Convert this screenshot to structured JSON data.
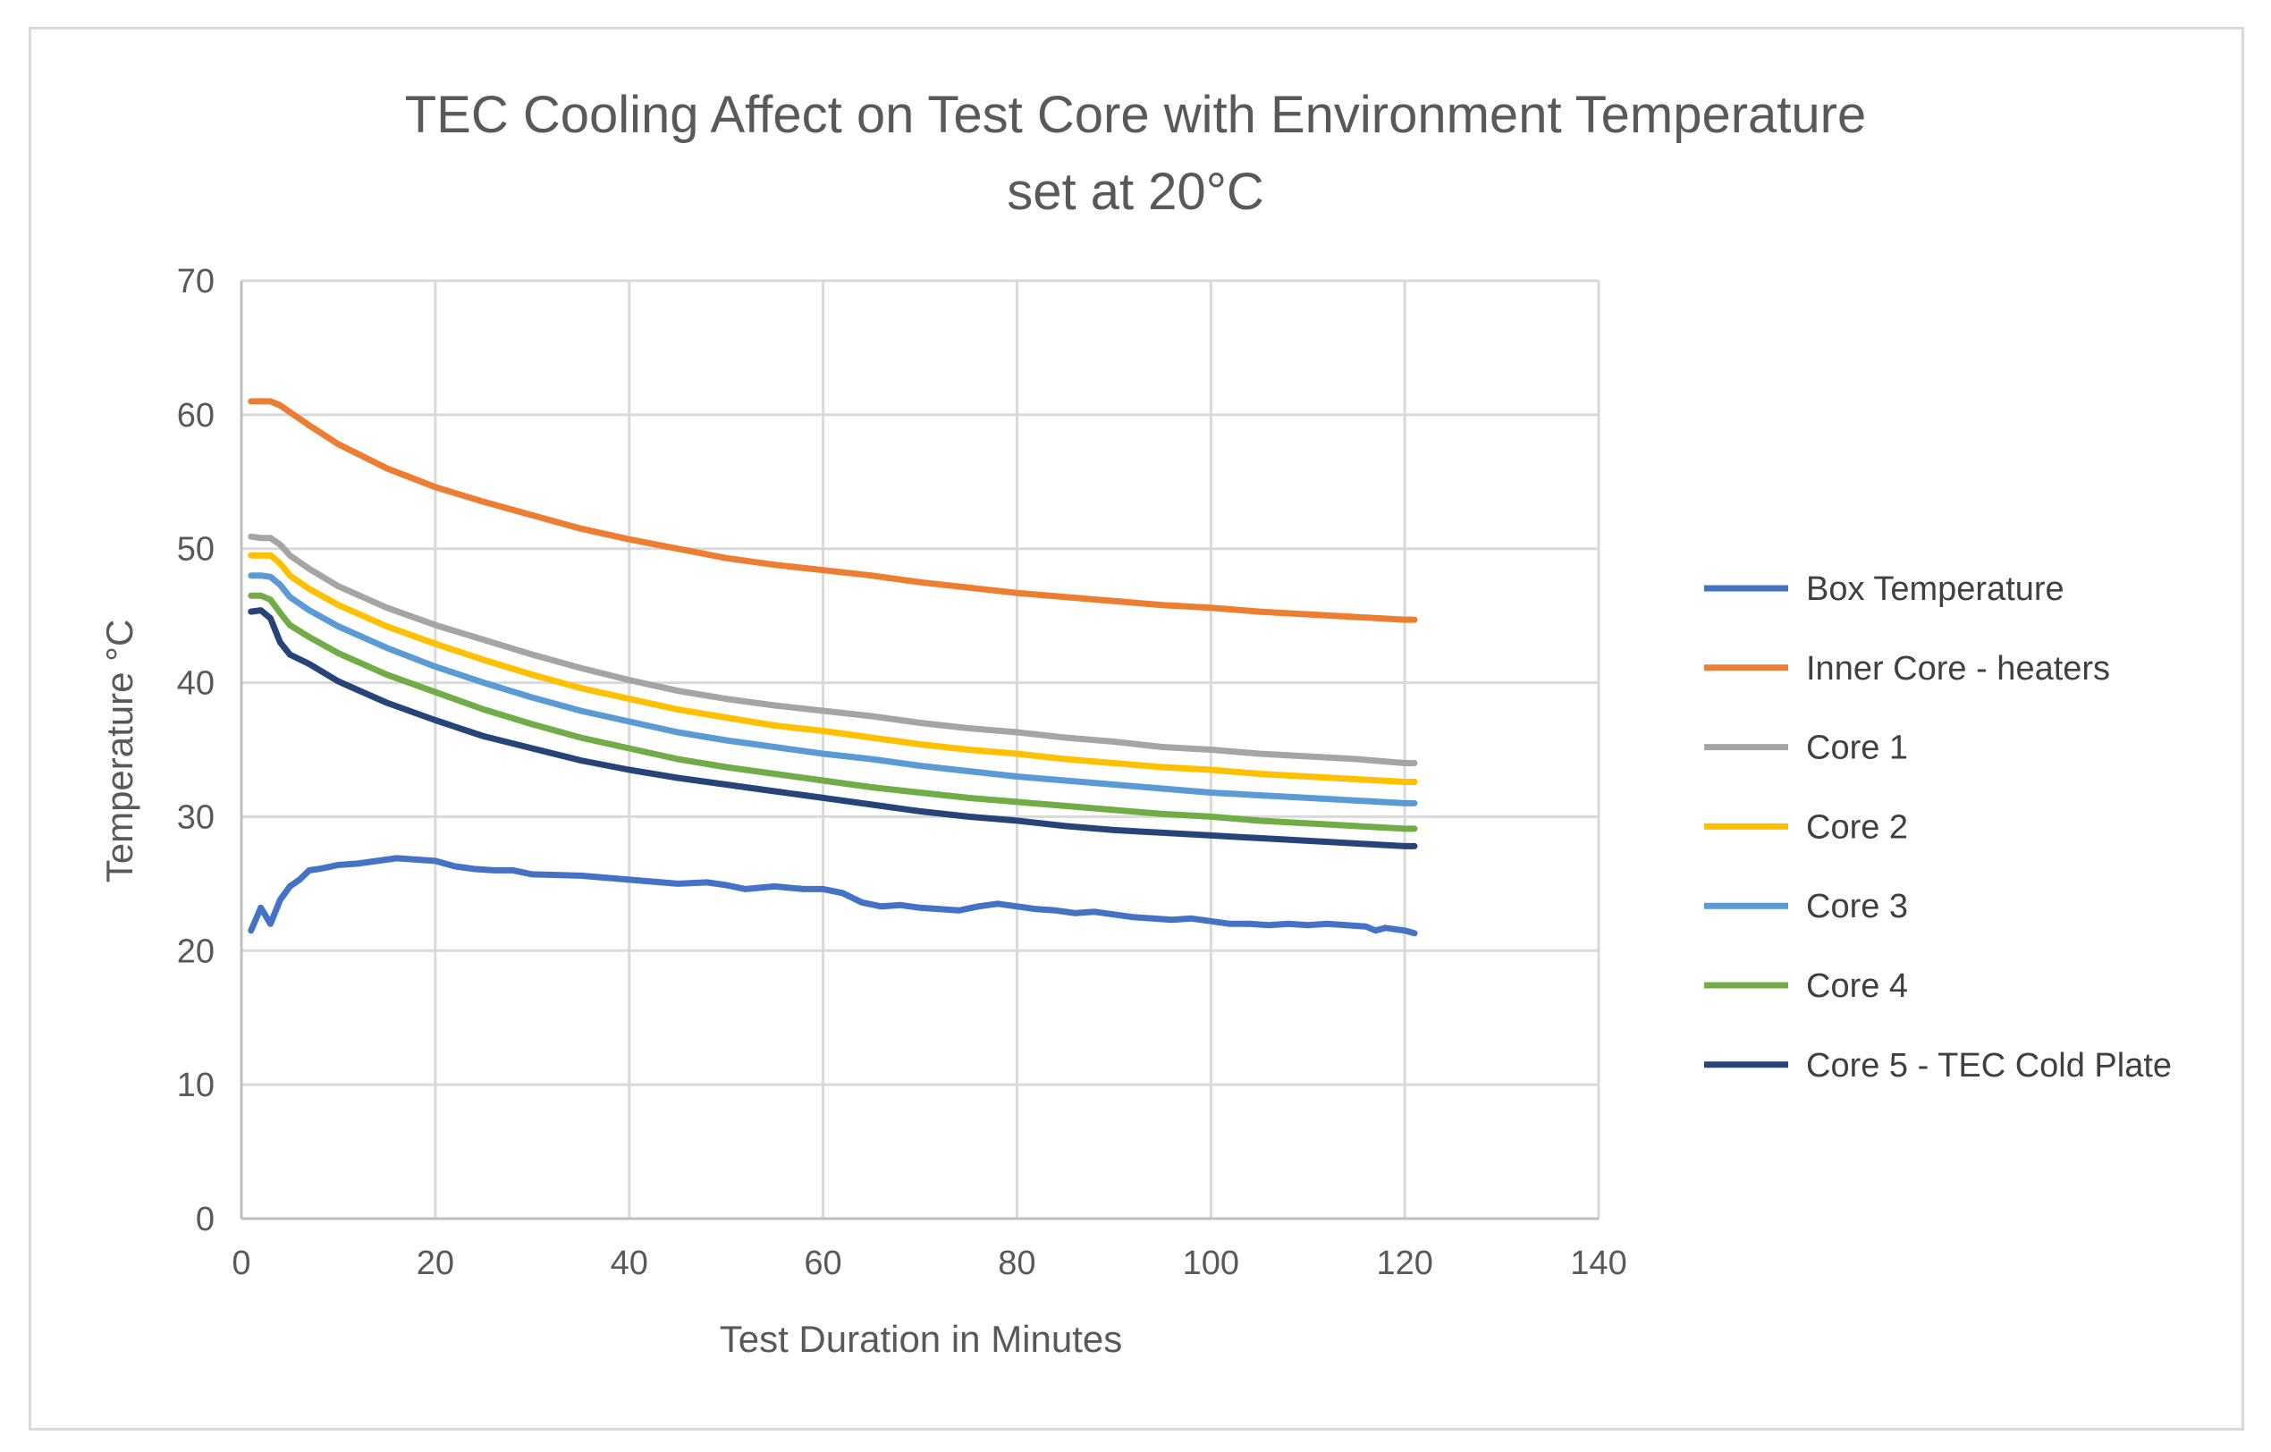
{
  "chart_data": {
    "type": "line",
    "title_lines": [
      "TEC Cooling Affect on Test Core with Environment Temperature",
      "set at 20°C"
    ],
    "xlabel": "Test Duration in Minutes",
    "ylabel": "Temperature °C",
    "xlim": [
      0,
      140
    ],
    "ylim": [
      0,
      70
    ],
    "xticks": [
      0,
      20,
      40,
      60,
      80,
      100,
      120,
      140
    ],
    "yticks": [
      0,
      10,
      20,
      30,
      40,
      50,
      60,
      70
    ],
    "grid": true,
    "legend_position": "right",
    "series": [
      {
        "name": "Box Temperature",
        "color": "#4472c4",
        "points": [
          [
            1,
            21.5
          ],
          [
            2,
            23.2
          ],
          [
            3,
            22.0
          ],
          [
            4,
            23.8
          ],
          [
            5,
            24.8
          ],
          [
            6,
            25.3
          ],
          [
            7,
            26.0
          ],
          [
            8,
            26.1
          ],
          [
            10,
            26.4
          ],
          [
            12,
            26.5
          ],
          [
            14,
            26.7
          ],
          [
            16,
            26.9
          ],
          [
            18,
            26.8
          ],
          [
            20,
            26.7
          ],
          [
            22,
            26.3
          ],
          [
            24,
            26.1
          ],
          [
            26,
            26.0
          ],
          [
            28,
            26.0
          ],
          [
            30,
            25.7
          ],
          [
            35,
            25.6
          ],
          [
            40,
            25.3
          ],
          [
            45,
            25.0
          ],
          [
            48,
            25.1
          ],
          [
            50,
            24.9
          ],
          [
            52,
            24.6
          ],
          [
            55,
            24.8
          ],
          [
            58,
            24.6
          ],
          [
            60,
            24.6
          ],
          [
            62,
            24.3
          ],
          [
            64,
            23.6
          ],
          [
            66,
            23.3
          ],
          [
            68,
            23.4
          ],
          [
            70,
            23.2
          ],
          [
            72,
            23.1
          ],
          [
            74,
            23.0
          ],
          [
            76,
            23.3
          ],
          [
            78,
            23.5
          ],
          [
            80,
            23.3
          ],
          [
            82,
            23.1
          ],
          [
            84,
            23.0
          ],
          [
            86,
            22.8
          ],
          [
            88,
            22.9
          ],
          [
            90,
            22.7
          ],
          [
            92,
            22.5
          ],
          [
            94,
            22.4
          ],
          [
            96,
            22.3
          ],
          [
            98,
            22.4
          ],
          [
            100,
            22.2
          ],
          [
            102,
            22.0
          ],
          [
            104,
            22.0
          ],
          [
            106,
            21.9
          ],
          [
            108,
            22.0
          ],
          [
            110,
            21.9
          ],
          [
            112,
            22.0
          ],
          [
            114,
            21.9
          ],
          [
            116,
            21.8
          ],
          [
            117,
            21.5
          ],
          [
            118,
            21.7
          ],
          [
            119,
            21.6
          ],
          [
            120,
            21.5
          ],
          [
            121,
            21.3
          ]
        ]
      },
      {
        "name": "Inner Core - heaters",
        "color": "#ed7d31",
        "points": [
          [
            1,
            61.0
          ],
          [
            2,
            61.0
          ],
          [
            3,
            61.0
          ],
          [
            4,
            60.7
          ],
          [
            5,
            60.2
          ],
          [
            7,
            59.2
          ],
          [
            10,
            57.8
          ],
          [
            15,
            56.0
          ],
          [
            20,
            54.6
          ],
          [
            25,
            53.5
          ],
          [
            30,
            52.5
          ],
          [
            35,
            51.5
          ],
          [
            40,
            50.7
          ],
          [
            45,
            50.0
          ],
          [
            50,
            49.3
          ],
          [
            55,
            48.8
          ],
          [
            60,
            48.4
          ],
          [
            65,
            48.0
          ],
          [
            70,
            47.5
          ],
          [
            75,
            47.1
          ],
          [
            80,
            46.7
          ],
          [
            85,
            46.4
          ],
          [
            90,
            46.1
          ],
          [
            95,
            45.8
          ],
          [
            100,
            45.6
          ],
          [
            105,
            45.3
          ],
          [
            110,
            45.1
          ],
          [
            115,
            44.9
          ],
          [
            120,
            44.7
          ],
          [
            121,
            44.7
          ]
        ]
      },
      {
        "name": "Core 1",
        "color": "#a5a5a5",
        "points": [
          [
            1,
            50.9
          ],
          [
            2,
            50.8
          ],
          [
            3,
            50.8
          ],
          [
            4,
            50.3
          ],
          [
            5,
            49.5
          ],
          [
            7,
            48.5
          ],
          [
            10,
            47.2
          ],
          [
            15,
            45.6
          ],
          [
            20,
            44.3
          ],
          [
            25,
            43.2
          ],
          [
            30,
            42.1
          ],
          [
            35,
            41.1
          ],
          [
            40,
            40.2
          ],
          [
            45,
            39.4
          ],
          [
            50,
            38.8
          ],
          [
            55,
            38.3
          ],
          [
            60,
            37.9
          ],
          [
            65,
            37.5
          ],
          [
            70,
            37.0
          ],
          [
            75,
            36.6
          ],
          [
            80,
            36.3
          ],
          [
            85,
            35.9
          ],
          [
            90,
            35.6
          ],
          [
            95,
            35.2
          ],
          [
            100,
            35.0
          ],
          [
            105,
            34.7
          ],
          [
            110,
            34.5
          ],
          [
            115,
            34.3
          ],
          [
            120,
            34.0
          ],
          [
            121,
            34.0
          ]
        ]
      },
      {
        "name": "Core 2",
        "color": "#ffc000",
        "points": [
          [
            1,
            49.5
          ],
          [
            2,
            49.5
          ],
          [
            3,
            49.5
          ],
          [
            4,
            48.9
          ],
          [
            5,
            48.0
          ],
          [
            7,
            47.0
          ],
          [
            10,
            45.8
          ],
          [
            15,
            44.2
          ],
          [
            20,
            42.9
          ],
          [
            25,
            41.7
          ],
          [
            30,
            40.6
          ],
          [
            35,
            39.6
          ],
          [
            40,
            38.8
          ],
          [
            45,
            38.0
          ],
          [
            50,
            37.4
          ],
          [
            55,
            36.8
          ],
          [
            60,
            36.4
          ],
          [
            65,
            35.9
          ],
          [
            70,
            35.4
          ],
          [
            75,
            35.0
          ],
          [
            80,
            34.7
          ],
          [
            85,
            34.3
          ],
          [
            90,
            34.0
          ],
          [
            95,
            33.7
          ],
          [
            100,
            33.5
          ],
          [
            105,
            33.2
          ],
          [
            110,
            33.0
          ],
          [
            115,
            32.8
          ],
          [
            120,
            32.6
          ],
          [
            121,
            32.6
          ]
        ]
      },
      {
        "name": "Core 3",
        "color": "#5b9bd5",
        "points": [
          [
            1,
            48.0
          ],
          [
            2,
            48.0
          ],
          [
            3,
            47.9
          ],
          [
            4,
            47.3
          ],
          [
            5,
            46.4
          ],
          [
            7,
            45.4
          ],
          [
            10,
            44.2
          ],
          [
            15,
            42.6
          ],
          [
            20,
            41.2
          ],
          [
            25,
            40.0
          ],
          [
            30,
            38.9
          ],
          [
            35,
            37.9
          ],
          [
            40,
            37.1
          ],
          [
            45,
            36.3
          ],
          [
            50,
            35.7
          ],
          [
            55,
            35.2
          ],
          [
            60,
            34.7
          ],
          [
            65,
            34.3
          ],
          [
            70,
            33.8
          ],
          [
            75,
            33.4
          ],
          [
            80,
            33.0
          ],
          [
            85,
            32.7
          ],
          [
            90,
            32.4
          ],
          [
            95,
            32.1
          ],
          [
            100,
            31.8
          ],
          [
            105,
            31.6
          ],
          [
            110,
            31.4
          ],
          [
            115,
            31.2
          ],
          [
            120,
            31.0
          ],
          [
            121,
            31.0
          ]
        ]
      },
      {
        "name": "Core 4",
        "color": "#70ad47",
        "points": [
          [
            1,
            46.5
          ],
          [
            2,
            46.5
          ],
          [
            3,
            46.2
          ],
          [
            4,
            45.2
          ],
          [
            5,
            44.3
          ],
          [
            7,
            43.4
          ],
          [
            10,
            42.2
          ],
          [
            15,
            40.6
          ],
          [
            20,
            39.3
          ],
          [
            25,
            38.0
          ],
          [
            30,
            36.9
          ],
          [
            35,
            35.9
          ],
          [
            40,
            35.1
          ],
          [
            45,
            34.3
          ],
          [
            50,
            33.7
          ],
          [
            55,
            33.2
          ],
          [
            60,
            32.7
          ],
          [
            65,
            32.2
          ],
          [
            70,
            31.8
          ],
          [
            75,
            31.4
          ],
          [
            80,
            31.1
          ],
          [
            85,
            30.8
          ],
          [
            90,
            30.5
          ],
          [
            95,
            30.2
          ],
          [
            100,
            30.0
          ],
          [
            105,
            29.7
          ],
          [
            110,
            29.5
          ],
          [
            115,
            29.3
          ],
          [
            120,
            29.1
          ],
          [
            121,
            29.1
          ]
        ]
      },
      {
        "name": "Core 5 - TEC Cold Plate",
        "color": "#264478",
        "points": [
          [
            1,
            45.3
          ],
          [
            2,
            45.4
          ],
          [
            3,
            44.8
          ],
          [
            4,
            43.0
          ],
          [
            5,
            42.1
          ],
          [
            7,
            41.4
          ],
          [
            10,
            40.1
          ],
          [
            15,
            38.5
          ],
          [
            20,
            37.2
          ],
          [
            25,
            36.0
          ],
          [
            30,
            35.1
          ],
          [
            35,
            34.2
          ],
          [
            40,
            33.5
          ],
          [
            45,
            32.9
          ],
          [
            50,
            32.4
          ],
          [
            55,
            31.9
          ],
          [
            60,
            31.4
          ],
          [
            65,
            30.9
          ],
          [
            70,
            30.4
          ],
          [
            75,
            30.0
          ],
          [
            80,
            29.7
          ],
          [
            85,
            29.3
          ],
          [
            90,
            29.0
          ],
          [
            95,
            28.8
          ],
          [
            100,
            28.6
          ],
          [
            105,
            28.4
          ],
          [
            110,
            28.2
          ],
          [
            115,
            28.0
          ],
          [
            120,
            27.8
          ],
          [
            121,
            27.8
          ]
        ]
      }
    ]
  }
}
